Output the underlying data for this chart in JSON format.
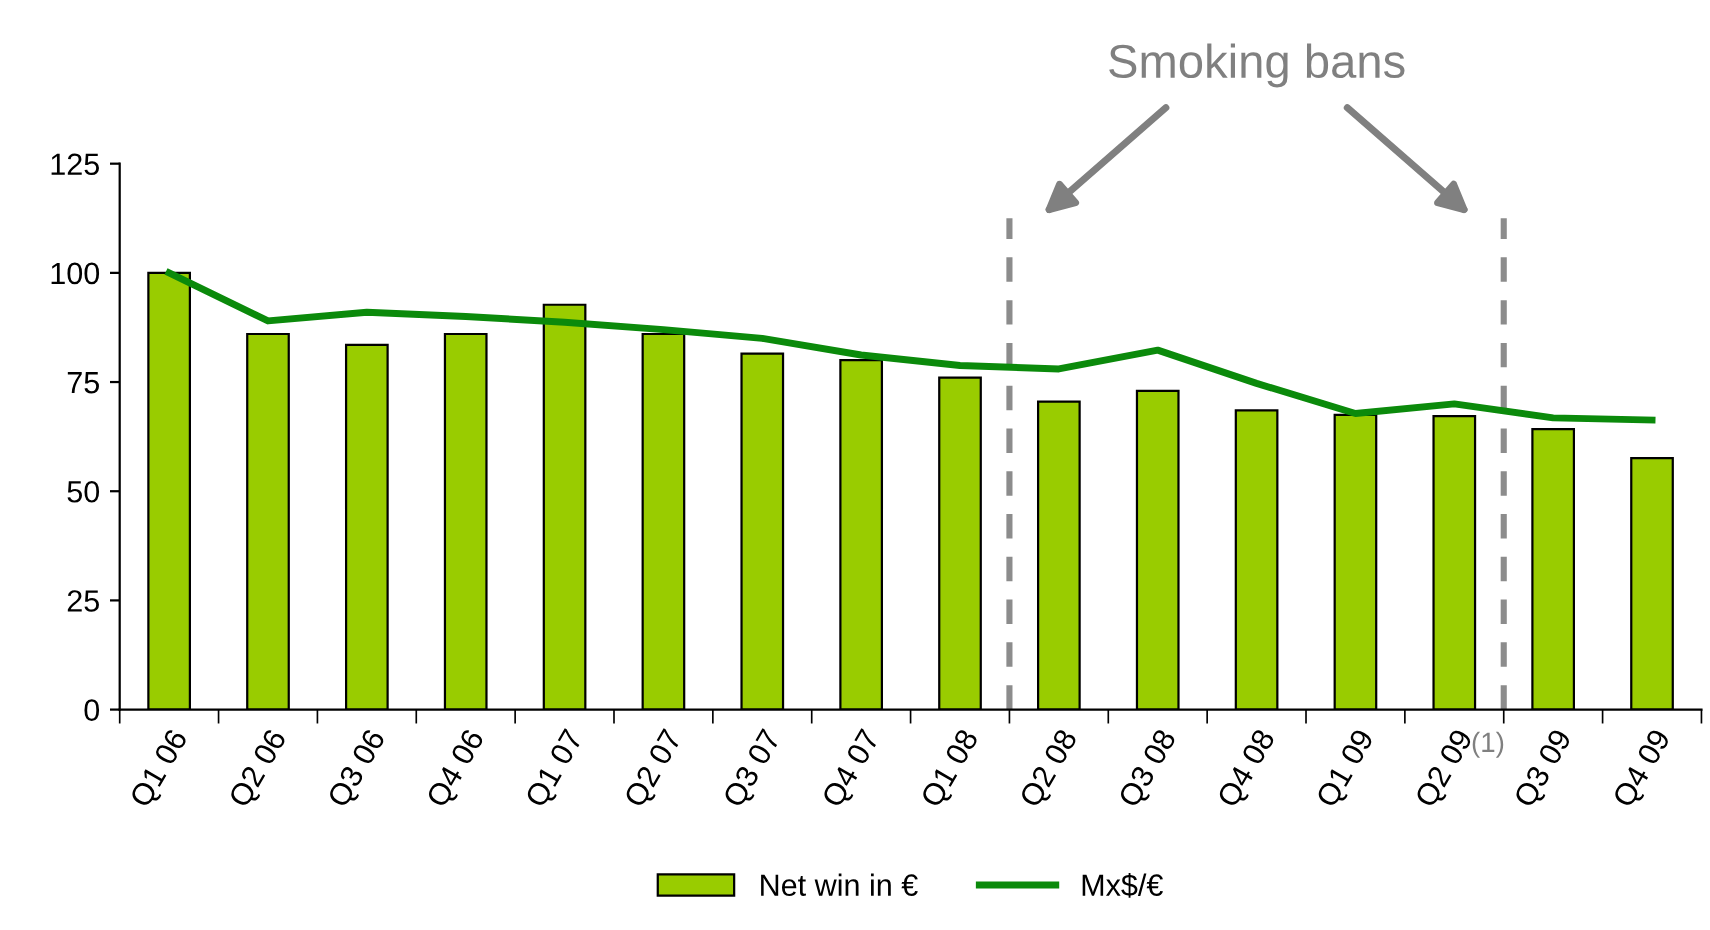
{
  "chart_data": {
    "type": "bar",
    "categories": [
      "Q1 06",
      "Q2 06",
      "Q3 06",
      "Q4 06",
      "Q1 07",
      "Q2 07",
      "Q3 07",
      "Q4 07",
      "Q1 08",
      "Q2 08",
      "Q3 08",
      "Q4 08",
      "Q1 09",
      "Q2 09",
      "Q3 09",
      "Q4 09"
    ],
    "series": [
      {
        "name": "Net win in €",
        "color": "#99cc00",
        "values": [
          100,
          86,
          83.5,
          86,
          92.7,
          86,
          81.5,
          80,
          76,
          70.5,
          73,
          68.5,
          67.5,
          67.2,
          64.2,
          57.6
        ]
      },
      {
        "name": "Mx$/€",
        "type": "line",
        "color": "#0b8a0b",
        "values": [
          100,
          89,
          91,
          90,
          88.7,
          87,
          85,
          81.2,
          78.8,
          78,
          82.3,
          74.7,
          67.8,
          70,
          66.8,
          66.3
        ]
      }
    ],
    "ylim": [
      0,
      125
    ],
    "yticks": [
      0,
      25,
      50,
      75,
      100,
      125
    ],
    "grid": false,
    "legend": "bottom",
    "marker": "none",
    "line_style": "solid",
    "annotations": [
      "Smoking bans",
      "(1)"
    ]
  }
}
